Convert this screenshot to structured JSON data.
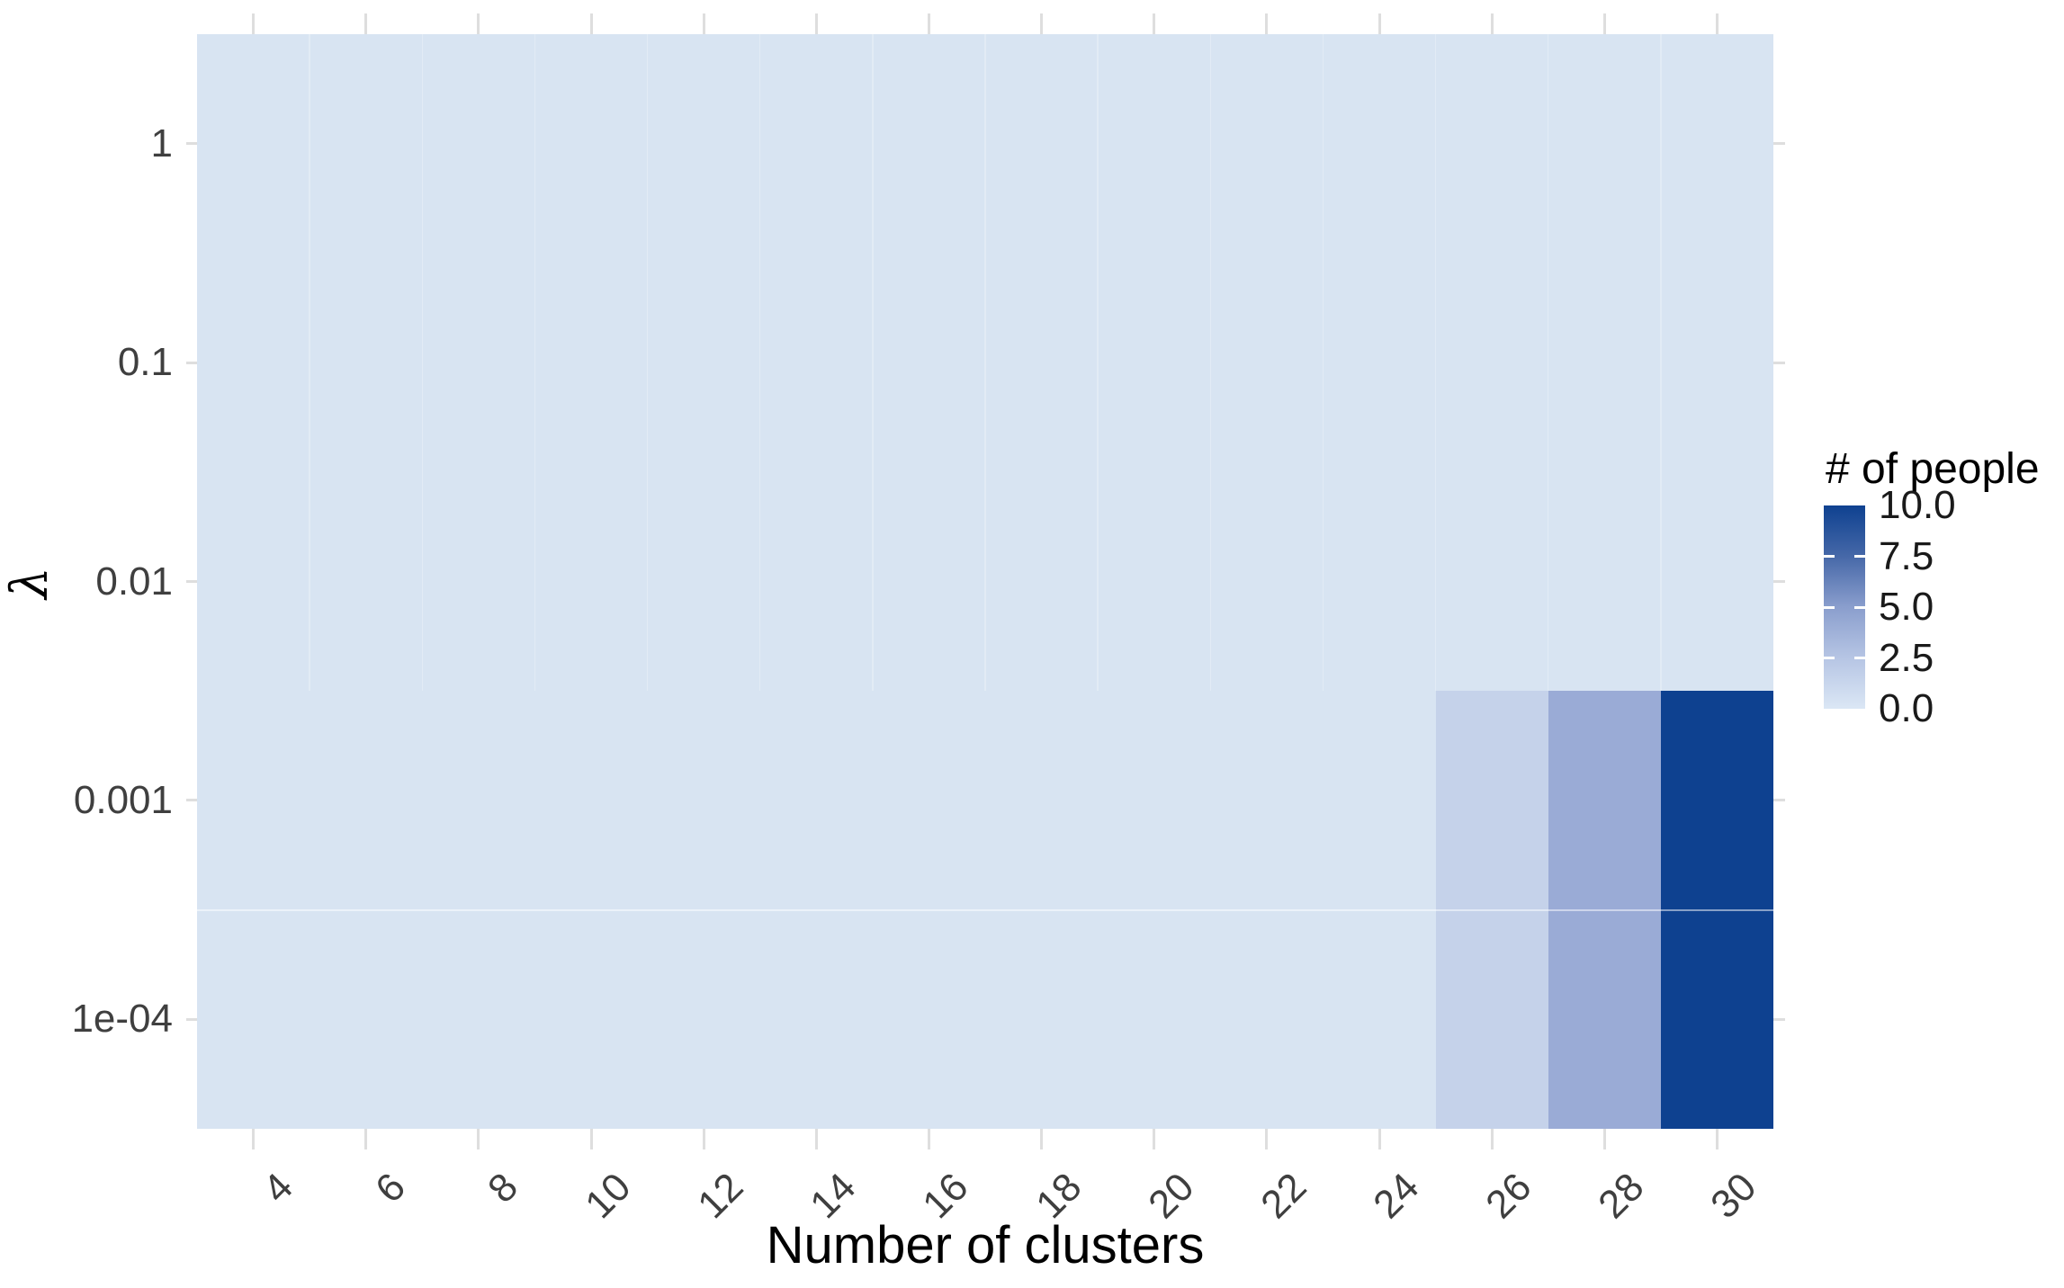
{
  "chart_data": {
    "type": "heatmap",
    "xlabel": "Number of clusters",
    "ylabel": "λ",
    "x_ticks": [
      4,
      6,
      8,
      10,
      12,
      14,
      16,
      18,
      20,
      22,
      24,
      26,
      28,
      30
    ],
    "x_range": [
      3,
      31
    ],
    "y_scale": "log10",
    "y_tick_labels": [
      "1",
      "0.1",
      "0.01",
      "0.001",
      "1e-04"
    ],
    "y_range_exponents": [
      0.5,
      -4.5
    ],
    "grid": "off",
    "legend": {
      "title": "# of people",
      "position": "right",
      "tick_labels": [
        "10.0",
        "7.5",
        "5.0",
        "2.5",
        "0.0"
      ],
      "tick_values": [
        10,
        7.5,
        5,
        2.5,
        0
      ],
      "range": [
        0,
        10
      ]
    },
    "background_value": 0,
    "cells": [
      {
        "x": 26,
        "lambda": "0.001",
        "value": 2
      },
      {
        "x": 28,
        "lambda": "0.001",
        "value": 4
      },
      {
        "x": 30,
        "lambda": "0.001",
        "value": 10
      },
      {
        "x": 26,
        "lambda": "1e-04",
        "value": 2
      },
      {
        "x": 28,
        "lambda": "1e-04",
        "value": 4
      },
      {
        "x": 30,
        "lambda": "1e-04",
        "value": 10
      }
    ],
    "colors": {
      "zero_fill": "#d8e4f2",
      "scale_low": "#dbe7f5",
      "scale_high": "#0e4190",
      "value_colors": {
        "2": "#c5d2ea",
        "4": "#9aabd6",
        "10": "#0e4190"
      },
      "colorbar_stops_top_to_bottom": [
        "#0e4190",
        "#4668a8",
        "#8a9ecd",
        "#b6c5e4",
        "#dbe7f5"
      ],
      "tick_mark": "#dedede",
      "axis_text": "#3f3f3f",
      "title_text": "#000000"
    }
  }
}
